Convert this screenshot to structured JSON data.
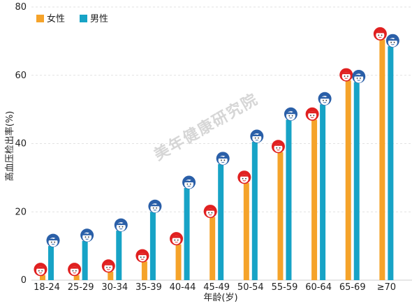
{
  "chart_data": {
    "type": "bar",
    "categories": [
      "18-24",
      "25-29",
      "30-34",
      "35-39",
      "40-44",
      "45-49",
      "50-54",
      "55-59",
      "60-64",
      "65-69",
      "≥70"
    ],
    "series": [
      {
        "name": "女性",
        "color": "#f5a32a",
        "icon": "female-face-icon",
        "values": [
          1.5,
          1.5,
          2.5,
          5.5,
          10.5,
          18.5,
          28.5,
          37.5,
          47.0,
          58.5,
          70.5
        ]
      },
      {
        "name": "男性",
        "color": "#17a3c6",
        "icon": "male-face-icon",
        "values": [
          10.0,
          11.5,
          14.5,
          20.0,
          27.0,
          34.0,
          40.5,
          47.0,
          51.5,
          58.0,
          68.5
        ]
      }
    ],
    "xlabel": "年龄(岁)",
    "ylabel": "高血压检出率(%)",
    "ylim": [
      0,
      80
    ],
    "yticks": [
      0,
      20,
      40,
      60,
      80
    ],
    "grid": true,
    "legend": "top-left",
    "watermark": "美年健康研究院"
  }
}
